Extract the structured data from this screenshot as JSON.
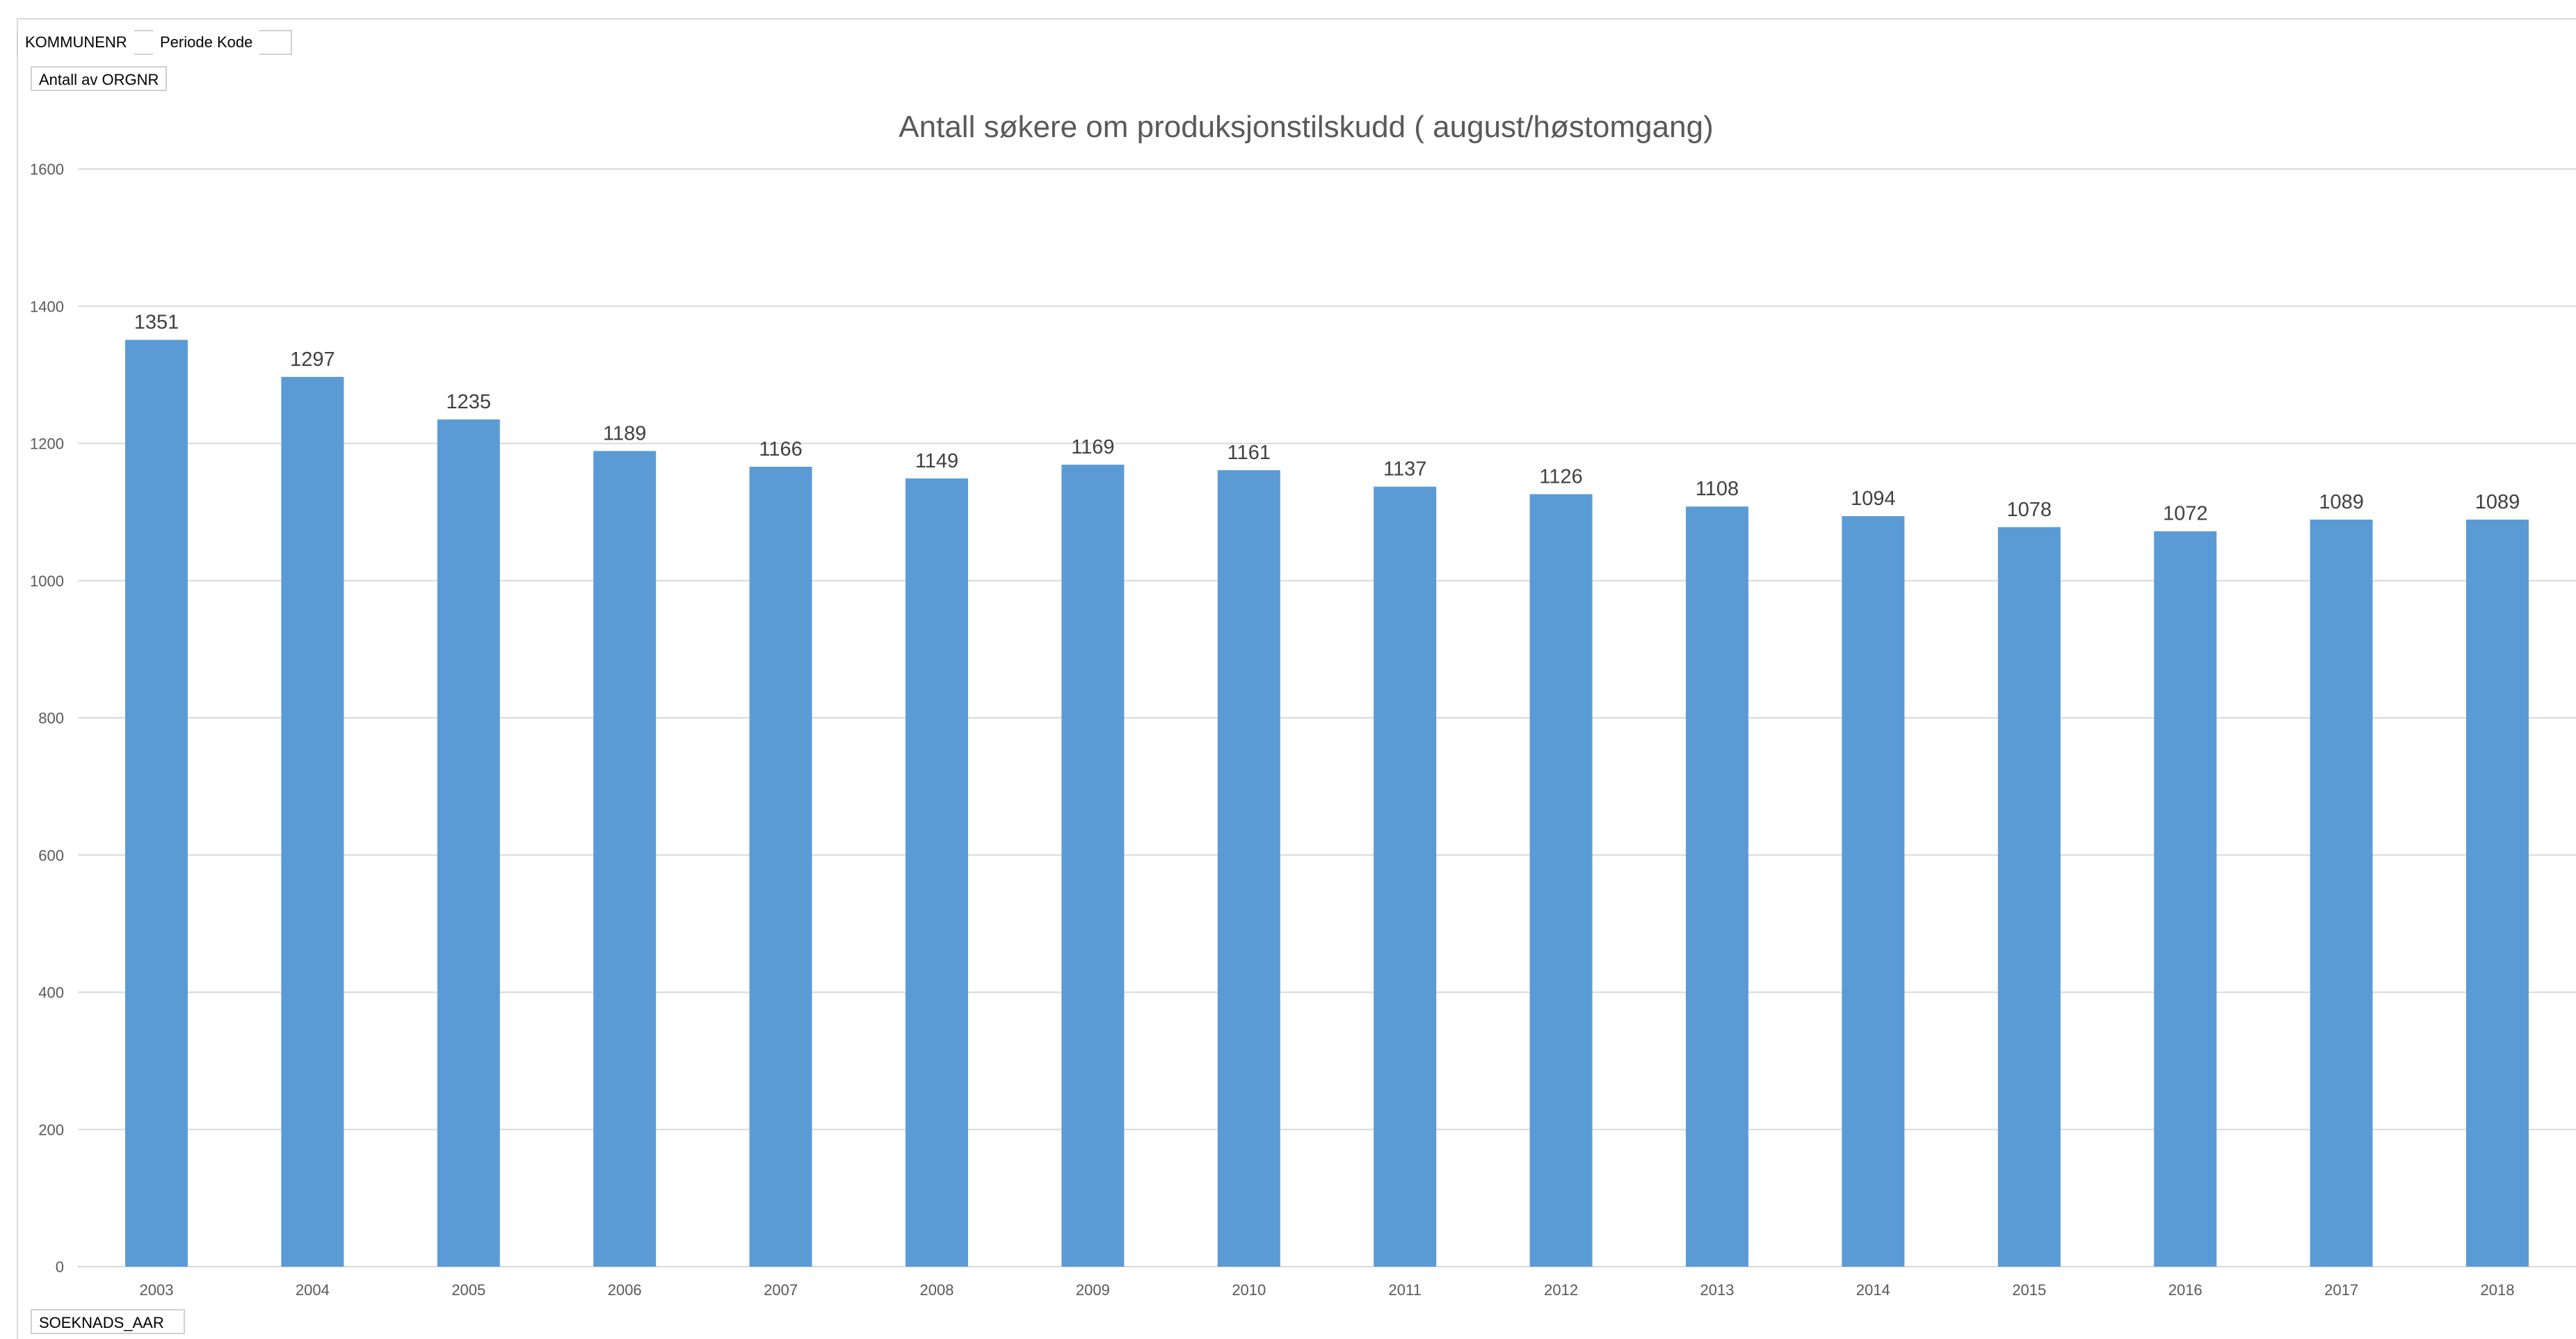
{
  "pivot_fields": {
    "filter_fields": [
      "KOMMUNENR",
      "Periode Kode"
    ],
    "value_field": "Antall av ORGNR",
    "axis_field": "SOEKNADS_AAR"
  },
  "colors": {
    "bar": "#5b9bd5",
    "gridline": "#d9d9d9",
    "text": "#595959"
  },
  "chart_data": {
    "type": "bar",
    "title": "Antall søkere om produksjonstilskudd ( august/høstomgang)",
    "xlabel": "",
    "ylabel": "",
    "categories": [
      "2003",
      "2004",
      "2005",
      "2006",
      "2007",
      "2008",
      "2009",
      "2010",
      "2011",
      "2012",
      "2013",
      "2014",
      "2015",
      "2016",
      "2017",
      "2018"
    ],
    "values": [
      1351,
      1297,
      1235,
      1189,
      1166,
      1149,
      1169,
      1161,
      1137,
      1126,
      1108,
      1094,
      1078,
      1072,
      1089,
      1089
    ],
    "ylim": [
      0,
      1600
    ],
    "yticks": [
      0,
      200,
      400,
      600,
      800,
      1000,
      1200,
      1400,
      1600
    ],
    "grid": true,
    "legend": "none",
    "data_labels": true
  }
}
